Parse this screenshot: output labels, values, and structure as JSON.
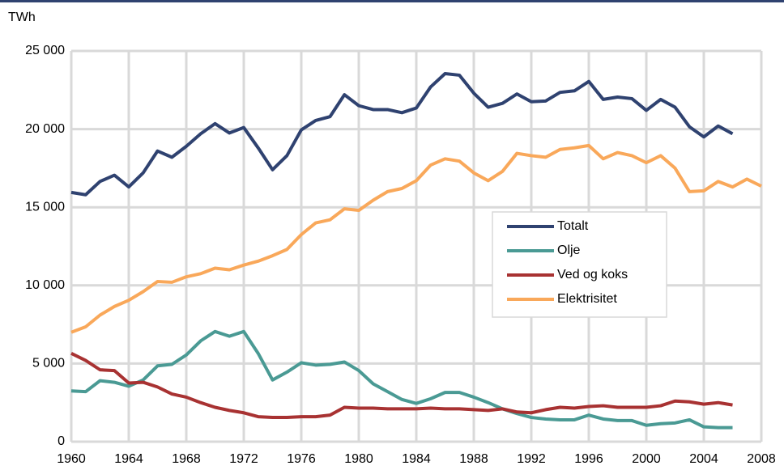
{
  "chart_data": {
    "type": "line",
    "y_label": "TWh",
    "x": [
      1960,
      1961,
      1962,
      1963,
      1964,
      1965,
      1966,
      1967,
      1968,
      1969,
      1970,
      1971,
      1972,
      1973,
      1974,
      1975,
      1976,
      1977,
      1978,
      1979,
      1980,
      1981,
      1982,
      1983,
      1984,
      1985,
      1986,
      1987,
      1988,
      1989,
      1990,
      1991,
      1992,
      1993,
      1994,
      1995,
      1996,
      1997,
      1998,
      1999,
      2000,
      2001,
      2002,
      2003,
      2004,
      2005,
      2006,
      2007,
      2008
    ],
    "series": [
      {
        "name": "Totalt",
        "color": "#2f4270",
        "values": [
          15950,
          15800,
          16650,
          17050,
          16300,
          17200,
          18600,
          18200,
          18900,
          19700,
          20350,
          19750,
          20100,
          18800,
          17400,
          18300,
          19950,
          20550,
          20800,
          22200,
          21500,
          21250,
          21250,
          21050,
          21350,
          22700,
          23550,
          23450,
          22300,
          21400,
          21650,
          22250,
          21750,
          21800,
          22350,
          22450,
          23050,
          21900,
          22050,
          21950,
          21200,
          21900,
          21400,
          20150,
          19500,
          20200,
          19700,
          null,
          null
        ]
      },
      {
        "name": "Olje",
        "color": "#4a9a94",
        "values": [
          3250,
          3200,
          3900,
          3800,
          3550,
          3950,
          4850,
          4950,
          5550,
          6450,
          7050,
          6750,
          7050,
          5650,
          3950,
          4450,
          5050,
          4900,
          4950,
          5100,
          4550,
          3700,
          3200,
          2700,
          2450,
          2750,
          3150,
          3150,
          2850,
          2500,
          2100,
          1800,
          1550,
          1450,
          1400,
          1400,
          1700,
          1450,
          1350,
          1350,
          1050,
          1150,
          1200,
          1400,
          950,
          900,
          900,
          null,
          null
        ]
      },
      {
        "name": "Ved og koks",
        "color": "#a83232",
        "values": [
          5650,
          5200,
          4600,
          4550,
          3750,
          3800,
          3500,
          3050,
          2850,
          2500,
          2200,
          2000,
          1850,
          1600,
          1550,
          1550,
          1600,
          1600,
          1700,
          2200,
          2150,
          2150,
          2100,
          2100,
          2100,
          2150,
          2100,
          2100,
          2050,
          2000,
          2100,
          1900,
          1850,
          2050,
          2200,
          2150,
          2250,
          2300,
          2200,
          2200,
          2200,
          2300,
          2600,
          2550,
          2400,
          2500,
          2350,
          null,
          null
        ]
      },
      {
        "name": "Elektrisitet",
        "color": "#f9a85a",
        "values": [
          7000,
          7350,
          8100,
          8650,
          9050,
          9600,
          10250,
          10200,
          10550,
          10750,
          11100,
          11000,
          11300,
          11550,
          11900,
          12300,
          13250,
          14000,
          14200,
          14900,
          14800,
          15450,
          16000,
          16200,
          16700,
          17700,
          18100,
          17950,
          17200,
          16700,
          17300,
          18450,
          18300,
          18200,
          18700,
          18800,
          18950,
          18100,
          18500,
          18300,
          17850,
          18300,
          17500,
          16000,
          16050,
          16650,
          16300,
          16800,
          16350
        ]
      }
    ],
    "xlim": [
      1960,
      2008
    ],
    "xticks": [
      1960,
      1964,
      1968,
      1972,
      1976,
      1980,
      1984,
      1988,
      1992,
      1996,
      2000,
      2004,
      2008
    ],
    "ylim": [
      0,
      25000
    ],
    "yticks": [
      0,
      {
        "value": 5000,
        "label": "5 000"
      },
      {
        "value": 10000,
        "label": "10 000"
      },
      {
        "value": 15000,
        "label": "15 000"
      },
      {
        "value": 20000,
        "label": "20 000"
      },
      {
        "value": 25000,
        "label": "25 000"
      }
    ],
    "grid": true,
    "legend_position": "right"
  }
}
